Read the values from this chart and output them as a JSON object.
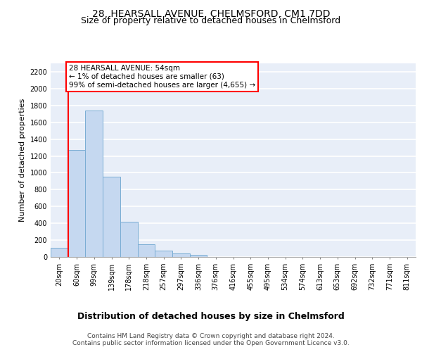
{
  "title": "28, HEARSALL AVENUE, CHELMSFORD, CM1 7DD",
  "subtitle": "Size of property relative to detached houses in Chelmsford",
  "xlabel": "Distribution of detached houses by size in Chelmsford",
  "ylabel": "Number of detached properties",
  "bar_color": "#c5d8f0",
  "bar_edge_color": "#7aadd4",
  "categories": [
    "20sqm",
    "60sqm",
    "99sqm",
    "139sqm",
    "178sqm",
    "218sqm",
    "257sqm",
    "297sqm",
    "336sqm",
    "376sqm",
    "416sqm",
    "455sqm",
    "495sqm",
    "534sqm",
    "574sqm",
    "613sqm",
    "653sqm",
    "692sqm",
    "732sqm",
    "771sqm",
    "811sqm"
  ],
  "values": [
    110,
    1270,
    1740,
    950,
    415,
    150,
    75,
    45,
    25,
    0,
    0,
    0,
    0,
    0,
    0,
    0,
    0,
    0,
    0,
    0,
    0
  ],
  "ylim": [
    0,
    2300
  ],
  "yticks": [
    0,
    200,
    400,
    600,
    800,
    1000,
    1200,
    1400,
    1600,
    1800,
    2000,
    2200
  ],
  "annotation_text": "28 HEARSALL AVENUE: 54sqm\n← 1% of detached houses are smaller (63)\n99% of semi-detached houses are larger (4,655) →",
  "footer_line1": "Contains HM Land Registry data © Crown copyright and database right 2024.",
  "footer_line2": "Contains public sector information licensed under the Open Government Licence v3.0.",
  "bg_color": "#e8eef8",
  "fig_bg_color": "#ffffff",
  "grid_color": "#ffffff",
  "title_fontsize": 10,
  "subtitle_fontsize": 9,
  "xlabel_fontsize": 9,
  "ylabel_fontsize": 8,
  "tick_fontsize": 7,
  "annotation_fontsize": 7.5,
  "footer_fontsize": 6.5
}
